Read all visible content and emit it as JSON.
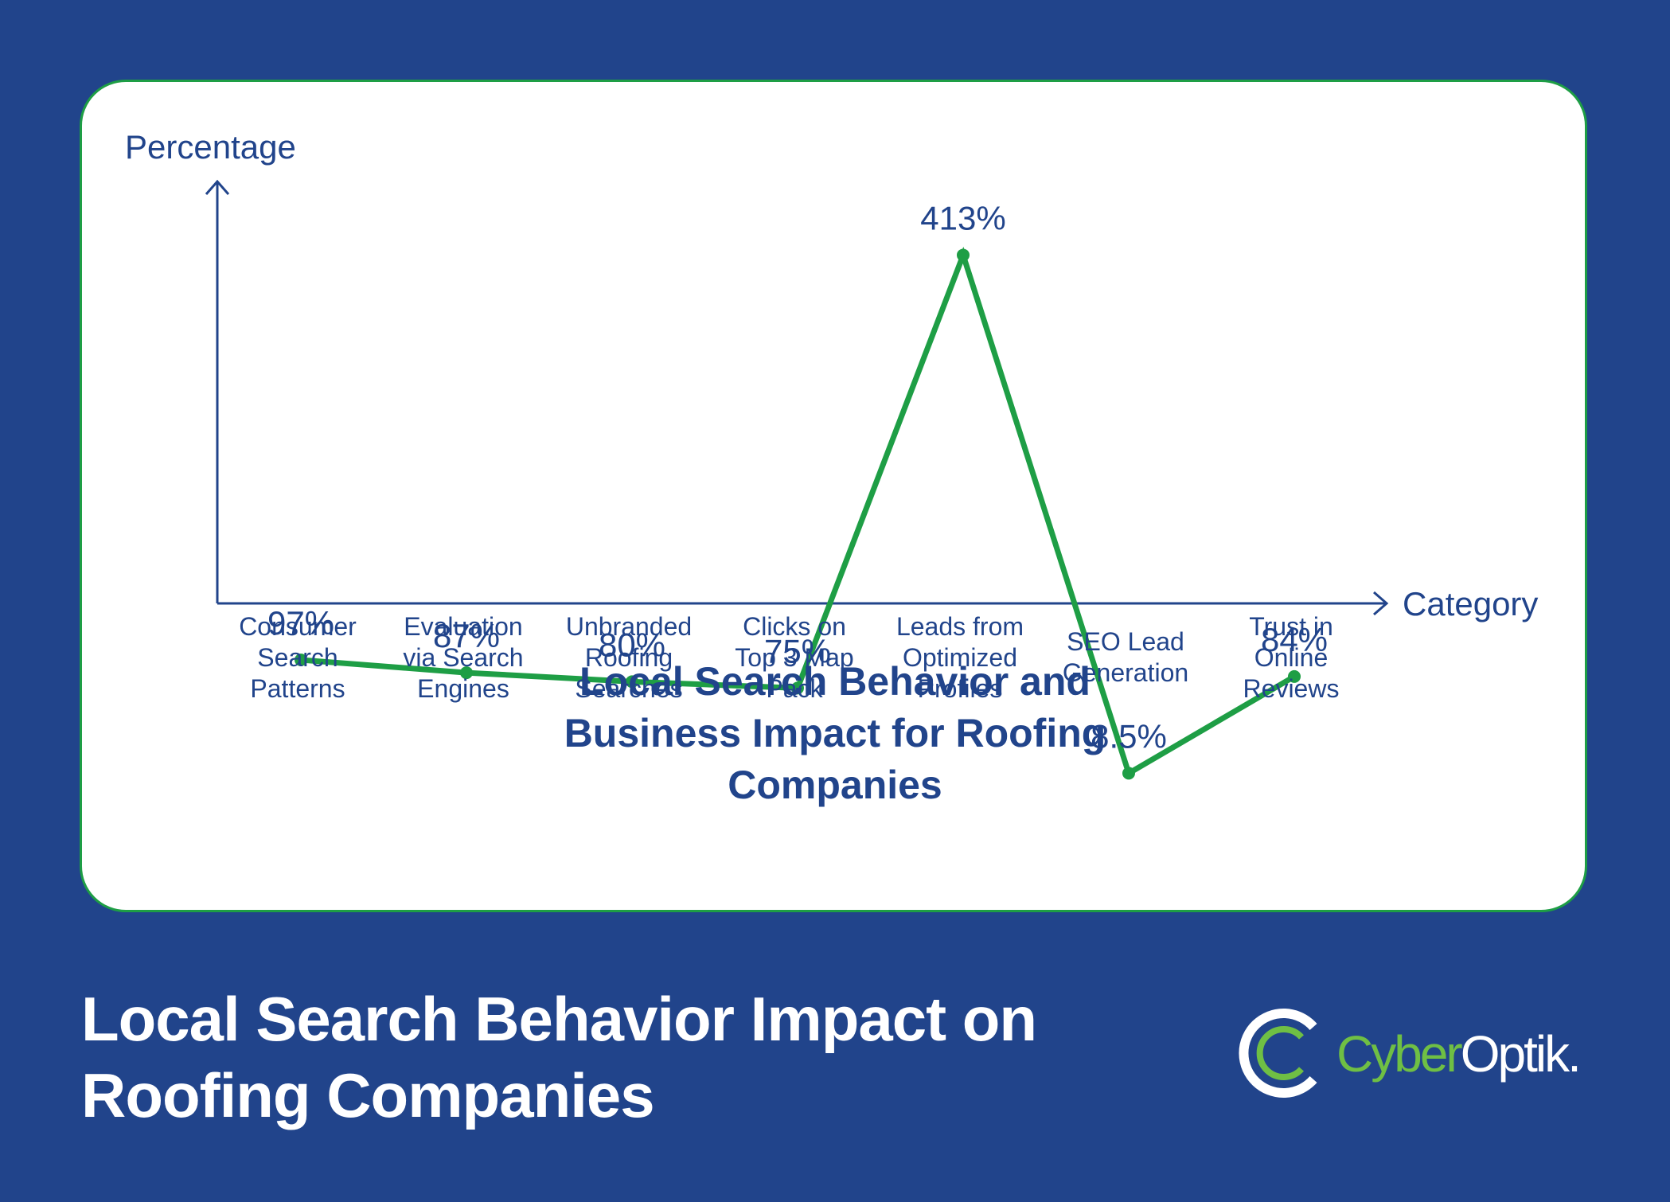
{
  "colors": {
    "background": "#21448b",
    "card": "#ffffff",
    "card_border": "#1e9e45",
    "line": "#1e9e45",
    "text": "#21448b",
    "logo_green": "#6fbf44"
  },
  "chart_data": {
    "type": "line",
    "title_lines": [
      "Local Search Behavior and",
      "Business Impact for Roofing",
      "Companies"
    ],
    "xlabel": "Category",
    "ylabel": "Percentage",
    "categories": [
      [
        "Consumer",
        "Search",
        "Patterns"
      ],
      [
        "Evaluation",
        "via Search",
        "Engines"
      ],
      [
        "Unbranded",
        "Roofing",
        "Searches"
      ],
      [
        "Clicks on",
        "Top 3 Map",
        "Pack"
      ],
      [
        "Leads from",
        "Optimized",
        "Profiles"
      ],
      [
        "SEO Lead",
        "Generation"
      ],
      [
        "Trust in",
        "Online",
        "Reviews"
      ]
    ],
    "series": [
      {
        "name": "Percentage",
        "values": [
          97,
          87,
          80,
          75,
          413,
          8.5,
          84
        ],
        "labels": [
          "97%",
          "87%",
          "80%",
          "75%",
          "413%",
          "8.5%",
          "84%"
        ]
      }
    ],
    "ylim": [
      -100,
      550
    ],
    "grid": false,
    "legend": "none"
  },
  "footer": {
    "title_lines": [
      "Local Search Behavior Impact on",
      "Roofing Companies"
    ],
    "logo_icon": "cyberoptik-ring-logo-icon",
    "logo_text_part1": "Cyber",
    "logo_text_part2": "Optik."
  }
}
